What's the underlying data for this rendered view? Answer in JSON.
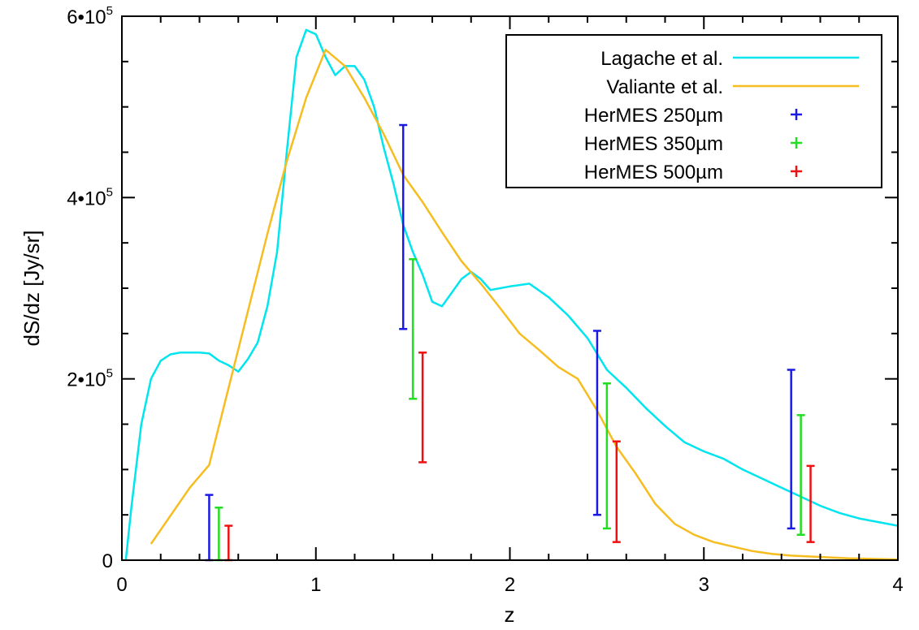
{
  "chart_data": {
    "type": "line",
    "title": "",
    "xlabel": "z",
    "ylabel": "dS/dz [Jy/sr]",
    "xlim": [
      0,
      4
    ],
    "ylim": [
      0,
      600000
    ],
    "grid": false,
    "legend_position": "top-right",
    "x_ticks": [
      {
        "value": 0,
        "label": "0"
      },
      {
        "value": 1,
        "label": "1"
      },
      {
        "value": 2,
        "label": "2"
      },
      {
        "value": 3,
        "label": "3"
      },
      {
        "value": 4,
        "label": "4"
      }
    ],
    "y_ticks": [
      {
        "value": 0,
        "base": "0",
        "exp": ""
      },
      {
        "value": 200000,
        "base": "2•10",
        "exp": "5"
      },
      {
        "value": 400000,
        "base": "4•10",
        "exp": "5"
      },
      {
        "value": 600000,
        "base": "6•10",
        "exp": "5"
      }
    ],
    "series": [
      {
        "name": "Lagache et al.",
        "kind": "line",
        "color": "#00e5ee",
        "x": [
          0.02,
          0.05,
          0.1,
          0.15,
          0.2,
          0.25,
          0.3,
          0.35,
          0.4,
          0.45,
          0.5,
          0.55,
          0.6,
          0.65,
          0.7,
          0.75,
          0.8,
          0.85,
          0.9,
          0.95,
          1.0,
          1.05,
          1.1,
          1.15,
          1.2,
          1.25,
          1.3,
          1.35,
          1.4,
          1.45,
          1.5,
          1.55,
          1.6,
          1.65,
          1.7,
          1.75,
          1.8,
          1.85,
          1.9,
          2.0,
          2.1,
          2.2,
          2.3,
          2.4,
          2.5,
          2.6,
          2.7,
          2.8,
          2.9,
          3.0,
          3.1,
          3.2,
          3.3,
          3.4,
          3.5,
          3.6,
          3.7,
          3.8,
          3.9,
          4.0
        ],
        "y": [
          0,
          60000,
          150000,
          200000,
          220000,
          227000,
          229000,
          229000,
          229000,
          228000,
          220000,
          215000,
          208000,
          222000,
          240000,
          280000,
          340000,
          450000,
          555000,
          585000,
          580000,
          555000,
          535000,
          545000,
          545000,
          530000,
          500000,
          455000,
          415000,
          370000,
          340000,
          315000,
          285000,
          280000,
          295000,
          310000,
          318000,
          310000,
          298000,
          302000,
          305000,
          290000,
          270000,
          245000,
          210000,
          190000,
          168000,
          148000,
          130000,
          120000,
          112000,
          100000,
          90000,
          80000,
          70000,
          60000,
          52000,
          46000,
          42000,
          38000
        ]
      },
      {
        "name": "Valiante et al.",
        "kind": "line",
        "color": "#f5bd1f",
        "x": [
          0.15,
          0.35,
          0.45,
          0.55,
          0.65,
          0.75,
          0.85,
          0.95,
          1.05,
          1.15,
          1.25,
          1.35,
          1.45,
          1.55,
          1.65,
          1.75,
          1.85,
          1.95,
          2.05,
          2.15,
          2.25,
          2.35,
          2.45,
          2.55,
          2.65,
          2.75,
          2.85,
          2.95,
          3.05,
          3.15,
          3.25,
          3.35,
          3.45,
          3.55,
          3.65,
          3.75,
          3.85,
          3.95,
          4.0
        ],
        "y": [
          18000,
          80000,
          105000,
          190000,
          275000,
          360000,
          440000,
          510000,
          563000,
          545000,
          510000,
          470000,
          425000,
          395000,
          362000,
          330000,
          305000,
          278000,
          250000,
          232000,
          213000,
          200000,
          165000,
          125000,
          95000,
          62000,
          40000,
          28000,
          20000,
          15000,
          10000,
          7000,
          5000,
          4000,
          3000,
          2000,
          1500,
          1000,
          800
        ]
      },
      {
        "name": "HerMES 250µm",
        "kind": "errorbar",
        "color": "#1a1ae6",
        "x": [
          0.45,
          1.45,
          2.45,
          3.45
        ],
        "low": [
          0,
          255000,
          50000,
          35000
        ],
        "high": [
          72000,
          480000,
          253000,
          210000
        ]
      },
      {
        "name": "HerMES 350µm",
        "kind": "errorbar",
        "color": "#22dd22",
        "x": [
          0.5,
          1.5,
          2.5,
          3.5
        ],
        "low": [
          0,
          178000,
          35000,
          28000
        ],
        "high": [
          58000,
          332000,
          195000,
          160000
        ]
      },
      {
        "name": "HerMES 500µm",
        "kind": "errorbar",
        "color": "#ee1111",
        "x": [
          0.55,
          1.55,
          2.55,
          3.55
        ],
        "low": [
          0,
          108000,
          20000,
          20000
        ],
        "high": [
          38000,
          229000,
          131000,
          104000
        ]
      }
    ]
  }
}
